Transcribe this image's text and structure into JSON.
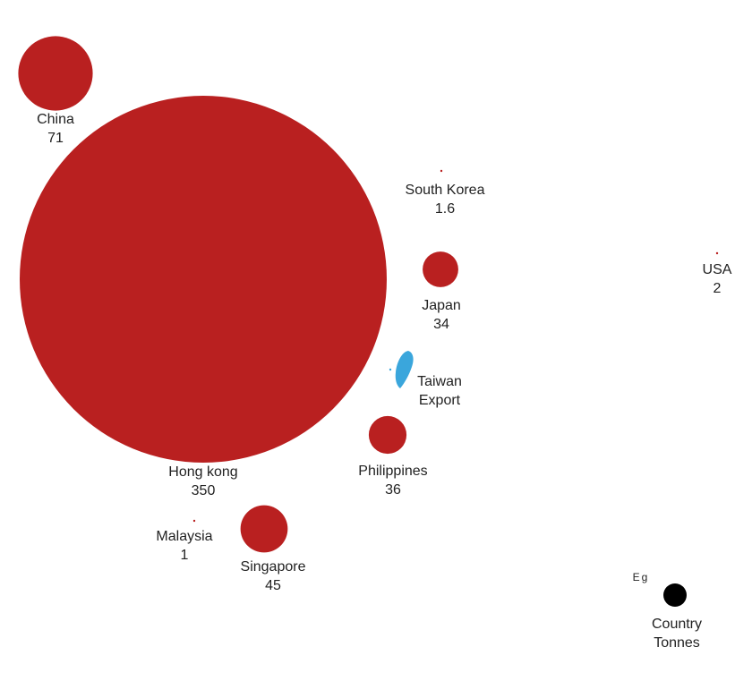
{
  "chart_data": {
    "type": "bubble",
    "categories": [
      "China",
      "Hong kong",
      "South Korea",
      "Japan",
      "Philippines",
      "Malaysia",
      "Singapore",
      "USA"
    ],
    "values": [
      71,
      350,
      1.6,
      34,
      36,
      1,
      45,
      2
    ],
    "color": "#b92020",
    "highlight": {
      "name": "Taiwan",
      "label": "Export",
      "color": "#3aa6dc"
    },
    "legend": {
      "label": "Eg",
      "name": "Country",
      "unit": "Tonnes",
      "color": "#000000"
    }
  }
}
